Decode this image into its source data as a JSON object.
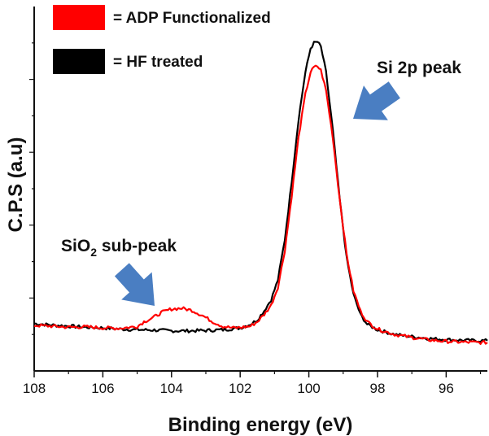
{
  "chart_data": {
    "type": "line",
    "title": "",
    "xlabel": "Binding energy (eV)",
    "ylabel": "C.P.S (a.u)",
    "xlim": [
      108,
      94.8
    ],
    "x_reversed": true,
    "ylim": [
      0,
      100
    ],
    "y_ticks_labeled": false,
    "x_ticks": [
      "108",
      "106",
      "104",
      "102",
      "100",
      "98",
      "96"
    ],
    "legend_placement": "top-left",
    "series": [
      {
        "name": "ADP Functionalized",
        "color": "#ff0000",
        "points": [
          [
            108,
            12.5
          ],
          [
            107.5,
            12.3
          ],
          [
            107,
            12.0
          ],
          [
            106.5,
            12.1
          ],
          [
            106,
            11.8
          ],
          [
            105.5,
            11.7
          ],
          [
            105,
            12.2
          ],
          [
            104.8,
            13.5
          ],
          [
            104.5,
            14.8
          ],
          [
            104.3,
            16.0
          ],
          [
            104,
            17.0
          ],
          [
            103.7,
            17.2
          ],
          [
            103.4,
            16.6
          ],
          [
            103.1,
            15.2
          ],
          [
            102.8,
            13.5
          ],
          [
            102.5,
            12.2
          ],
          [
            102.2,
            11.8
          ],
          [
            102,
            11.9
          ],
          [
            101.7,
            12.3
          ],
          [
            101.5,
            13.5
          ],
          [
            101.3,
            15.5
          ],
          [
            101.1,
            18.0
          ],
          [
            100.9,
            23.0
          ],
          [
            100.7,
            33.0
          ],
          [
            100.5,
            48.0
          ],
          [
            100.3,
            64.0
          ],
          [
            100.1,
            76.0
          ],
          [
            99.95,
            82.0
          ],
          [
            99.85,
            83.3
          ],
          [
            99.75,
            83.6
          ],
          [
            99.65,
            82.5
          ],
          [
            99.5,
            77.0
          ],
          [
            99.3,
            64.0
          ],
          [
            99.1,
            47.0
          ],
          [
            98.9,
            32.0
          ],
          [
            98.7,
            22.0
          ],
          [
            98.5,
            16.5
          ],
          [
            98.3,
            13.5
          ],
          [
            98,
            11.5
          ],
          [
            97.5,
            10.0
          ],
          [
            97,
            9.2
          ],
          [
            96.5,
            8.5
          ],
          [
            96,
            8.1
          ],
          [
            95.5,
            7.9
          ],
          [
            95,
            7.8
          ],
          [
            94.8,
            7.8
          ]
        ]
      },
      {
        "name": "HF treated",
        "color": "#000000",
        "points": [
          [
            108,
            13.0
          ],
          [
            107.5,
            12.6
          ],
          [
            107,
            12.3
          ],
          [
            106.5,
            12.0
          ],
          [
            106,
            11.8
          ],
          [
            105.5,
            11.5
          ],
          [
            105,
            11.3
          ],
          [
            104.5,
            11.2
          ],
          [
            104,
            11.0
          ],
          [
            103.5,
            11.0
          ],
          [
            103,
            11.1
          ],
          [
            102.5,
            11.3
          ],
          [
            102,
            11.8
          ],
          [
            101.7,
            12.8
          ],
          [
            101.5,
            14.0
          ],
          [
            101.3,
            16.5
          ],
          [
            101.1,
            19.5
          ],
          [
            100.9,
            25.0
          ],
          [
            100.7,
            36.0
          ],
          [
            100.5,
            52.0
          ],
          [
            100.3,
            69.0
          ],
          [
            100.1,
            82.0
          ],
          [
            99.95,
            88.5
          ],
          [
            99.85,
            90.0
          ],
          [
            99.75,
            90.3
          ],
          [
            99.65,
            89.0
          ],
          [
            99.5,
            82.0
          ],
          [
            99.3,
            66.0
          ],
          [
            99.1,
            47.0
          ],
          [
            98.9,
            31.0
          ],
          [
            98.7,
            21.0
          ],
          [
            98.5,
            15.5
          ],
          [
            98.3,
            12.8
          ],
          [
            98,
            11.3
          ],
          [
            97.5,
            10.0
          ],
          [
            97,
            9.4
          ],
          [
            96.5,
            8.9
          ],
          [
            96,
            8.6
          ],
          [
            95.5,
            8.4
          ],
          [
            95,
            8.3
          ],
          [
            94.8,
            8.3
          ]
        ]
      }
    ],
    "annotations": [
      {
        "text": "Si 2p peak",
        "arrow": "down-left",
        "color": "#4a7ec2",
        "points_to_x": 99.75
      },
      {
        "text": "SiO",
        "subscript": "2",
        "suffix": " sub-peak",
        "arrow": "down-right",
        "color": "#4a7ec2",
        "points_to_x": 104.3
      }
    ]
  }
}
